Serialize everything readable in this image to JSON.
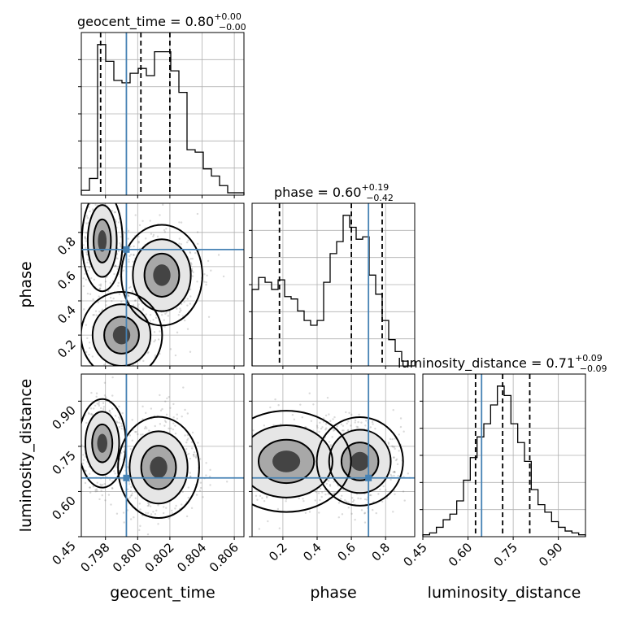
{
  "chart_data": {
    "type": "corner",
    "parameters": [
      {
        "key": "geocent_time",
        "label": "geocent_time",
        "range": [
          0.7965,
          0.8066
        ],
        "ticks": [
          0.798,
          0.8,
          0.802,
          0.804,
          0.806
        ],
        "tick_labels": [
          "0.798",
          "0.800",
          "0.802",
          "0.804",
          "0.806"
        ]
      },
      {
        "key": "phase",
        "label": "phase",
        "range": [
          0.02,
          0.97
        ],
        "ticks": [
          0.2,
          0.4,
          0.6,
          0.8
        ],
        "tick_labels": [
          "0.2",
          "0.4",
          "0.6",
          "0.8"
        ]
      },
      {
        "key": "luminosity_distance",
        "label": "luminosity_distance",
        "range": [
          0.45,
          0.99
        ],
        "ticks": [
          0.45,
          0.6,
          0.75,
          0.9
        ],
        "tick_labels": [
          "0.45",
          "0.60",
          "0.75",
          "0.90"
        ]
      }
    ],
    "titles": [
      {
        "name": "geocent_time",
        "median": "0.80",
        "plus": "+0.00",
        "minus": "−0.00"
      },
      {
        "name": "phase",
        "median": "0.60",
        "plus": "+0.19",
        "minus": "−0.42"
      },
      {
        "name": "luminosity_distance",
        "median": "0.71",
        "plus": "+0.09",
        "minus": "−0.09"
      }
    ],
    "truths": {
      "geocent_time": 0.7993,
      "phase": 0.7,
      "luminosity_distance": 0.645
    },
    "quantiles": {
      "geocent_time": [
        0.7977,
        0.8002,
        0.802
      ],
      "phase": [
        0.18,
        0.6,
        0.78
      ],
      "luminosity_distance": [
        0.625,
        0.715,
        0.805
      ]
    },
    "histograms": {
      "geocent_time": [
        2,
        7,
        63,
        56,
        48,
        47,
        51,
        53,
        50,
        60,
        60,
        52,
        43,
        19,
        18,
        11,
        8,
        4,
        1,
        1
      ],
      "phase": [
        32,
        37,
        35,
        32,
        36,
        29,
        28,
        23,
        19,
        17,
        19,
        35,
        47,
        52,
        63,
        58,
        53,
        54,
        38,
        30,
        19,
        11,
        6,
        2,
        0
      ],
      "luminosity_distance": [
        1,
        2,
        5,
        9,
        12,
        19,
        30,
        42,
        53,
        60,
        70,
        80,
        75,
        60,
        50,
        40,
        25,
        17,
        13,
        8,
        5,
        3,
        2,
        1
      ]
    },
    "grid": true
  }
}
